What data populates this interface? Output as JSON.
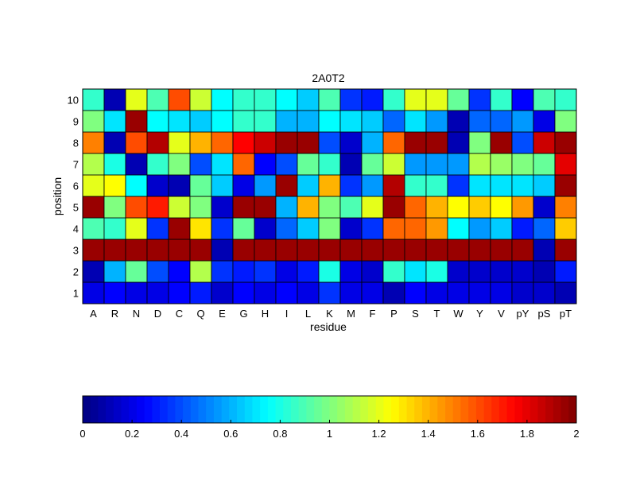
{
  "chart_data": {
    "type": "heatmap",
    "title": "2A0T2",
    "xlabel": "residue",
    "ylabel": "position",
    "x_categories": [
      "A",
      "R",
      "N",
      "D",
      "C",
      "Q",
      "E",
      "G",
      "H",
      "I",
      "L",
      "K",
      "M",
      "F",
      "P",
      "S",
      "T",
      "W",
      "Y",
      "V",
      "pY",
      "pS",
      "pT"
    ],
    "y_categories": [
      "1",
      "2",
      "3",
      "4",
      "5",
      "6",
      "7",
      "8",
      "9",
      "10"
    ],
    "colormap": "jet",
    "clim": [
      0,
      2
    ],
    "grid": true,
    "colorbar": {
      "location": "bottom",
      "ticks": [
        0,
        0.2,
        0.4,
        0.6,
        0.8,
        1,
        1.2,
        1.4,
        1.6,
        1.8,
        2
      ],
      "tick_labels": [
        "0",
        "0.2",
        "0.4",
        "0.6",
        "0.8",
        "1",
        "1.2",
        "1.4",
        "1.6",
        "1.8",
        "2"
      ]
    },
    "values": [
      [
        0.2,
        0.25,
        0.2,
        0.2,
        0.25,
        0.3,
        0.15,
        0.25,
        0.2,
        0.25,
        0.2,
        0.35,
        0.2,
        0.2,
        0.1,
        0.25,
        0.2,
        0.2,
        0.2,
        0.2,
        0.15,
        0.15,
        0.1
      ],
      [
        0.1,
        0.6,
        0.95,
        0.4,
        0.25,
        1.1,
        0.35,
        0.3,
        0.35,
        0.2,
        0.3,
        0.8,
        0.2,
        0.15,
        0.85,
        0.7,
        0.8,
        0.15,
        0.15,
        0.15,
        0.15,
        0.1,
        0.3
      ],
      [
        1.95,
        1.95,
        1.95,
        1.95,
        1.95,
        1.95,
        0.1,
        1.95,
        1.95,
        1.95,
        1.95,
        1.95,
        1.95,
        1.95,
        1.95,
        1.95,
        1.95,
        1.95,
        1.95,
        1.95,
        1.95,
        0.1,
        1.95
      ],
      [
        0.9,
        0.85,
        1.2,
        0.35,
        1.95,
        1.3,
        0.35,
        0.95,
        0.15,
        0.45,
        0.65,
        1.0,
        0.15,
        0.35,
        1.55,
        1.55,
        1.45,
        0.75,
        0.55,
        0.65,
        0.3,
        0.45,
        1.35
      ],
      [
        1.95,
        1.0,
        1.6,
        1.7,
        1.15,
        1.0,
        0.15,
        1.95,
        1.95,
        0.6,
        1.4,
        1.0,
        0.9,
        1.2,
        1.95,
        1.55,
        1.4,
        1.25,
        1.35,
        1.25,
        1.45,
        0.15,
        1.5
      ],
      [
        1.2,
        1.25,
        0.75,
        0.15,
        0.1,
        0.95,
        0.65,
        0.2,
        0.55,
        1.95,
        0.65,
        1.4,
        0.35,
        0.55,
        1.9,
        0.85,
        0.85,
        0.35,
        0.7,
        0.7,
        0.7,
        0.65,
        1.95
      ],
      [
        1.1,
        0.8,
        0.1,
        0.85,
        1.0,
        0.4,
        0.7,
        1.55,
        0.25,
        0.4,
        0.95,
        0.85,
        0.1,
        0.95,
        1.15,
        0.55,
        0.55,
        0.55,
        1.1,
        1.05,
        1.0,
        0.95,
        1.8
      ],
      [
        1.5,
        0.1,
        1.6,
        1.9,
        1.2,
        1.4,
        1.55,
        1.75,
        1.85,
        1.95,
        1.95,
        0.4,
        0.15,
        0.6,
        1.55,
        1.95,
        1.95,
        0.1,
        1.0,
        1.95,
        0.4,
        1.85,
        1.95
      ],
      [
        1.0,
        0.7,
        1.95,
        0.75,
        0.7,
        0.65,
        0.75,
        0.85,
        0.85,
        0.6,
        0.6,
        0.75,
        0.7,
        0.65,
        0.45,
        0.7,
        0.55,
        0.1,
        0.45,
        0.45,
        0.55,
        0.2,
        1.0
      ],
      [
        0.85,
        0.1,
        1.2,
        0.9,
        1.6,
        1.15,
        0.75,
        0.85,
        0.85,
        0.75,
        0.65,
        0.9,
        0.35,
        0.3,
        0.85,
        1.2,
        1.2,
        0.95,
        0.35,
        0.85,
        0.25,
        0.9,
        0.85
      ]
    ]
  }
}
